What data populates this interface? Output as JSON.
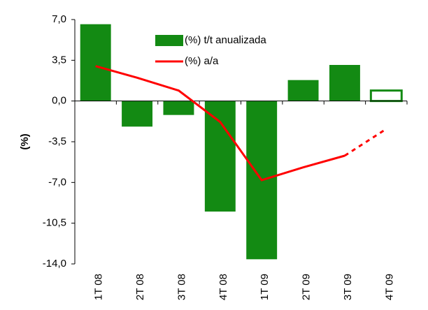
{
  "chart_data": {
    "type": "bar",
    "ylabel": "(%)",
    "categories": [
      "1T 08",
      "2T 08",
      "3T 08",
      "4T 08",
      "1T 09",
      "2T 09",
      "3T 09",
      "4T 09"
    ],
    "series": [
      {
        "name": "(%) t/t anualizada",
        "type": "bar",
        "color": "#138a13",
        "values": [
          6.6,
          -2.2,
          -1.2,
          -9.5,
          -13.6,
          1.8,
          3.1,
          0.9
        ]
      },
      {
        "name": "(%) a/a",
        "type": "line",
        "color": "#ff0000",
        "values": [
          3.0,
          2.0,
          0.9,
          -1.8,
          -6.8,
          -5.7,
          -4.7,
          -2.4
        ]
      }
    ],
    "forecast_start": 7,
    "ylim": [
      -14,
      7
    ],
    "yticks": [
      {
        "value": 7,
        "label": "7,0"
      },
      {
        "value": 3.5,
        "label": "3,5"
      },
      {
        "value": 0,
        "label": "0,0"
      },
      {
        "value": -3.5,
        "label": "-3,5"
      },
      {
        "value": -7,
        "label": "-7,0"
      },
      {
        "value": -10.5,
        "label": "-10,5"
      },
      {
        "value": -14,
        "label": "-14,0"
      }
    ]
  }
}
